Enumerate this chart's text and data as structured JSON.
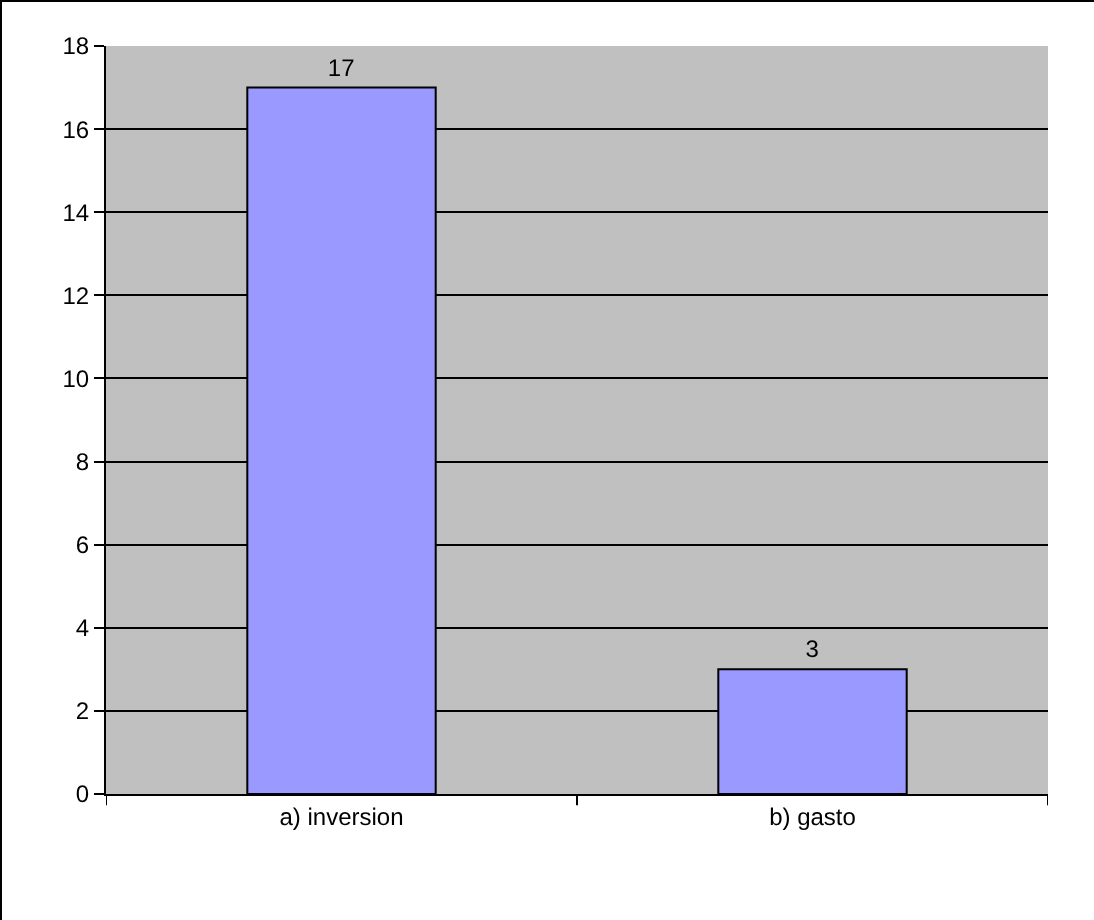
{
  "chart_data": {
    "type": "bar",
    "categories": [
      "a) inversion",
      "b) gasto"
    ],
    "values": [
      17,
      3
    ],
    "color": "#9999ff",
    "ylim": [
      0,
      18
    ],
    "yticks": [
      0,
      2,
      4,
      6,
      8,
      10,
      12,
      14,
      16,
      18
    ],
    "grid": "y",
    "data_labels": true
  }
}
